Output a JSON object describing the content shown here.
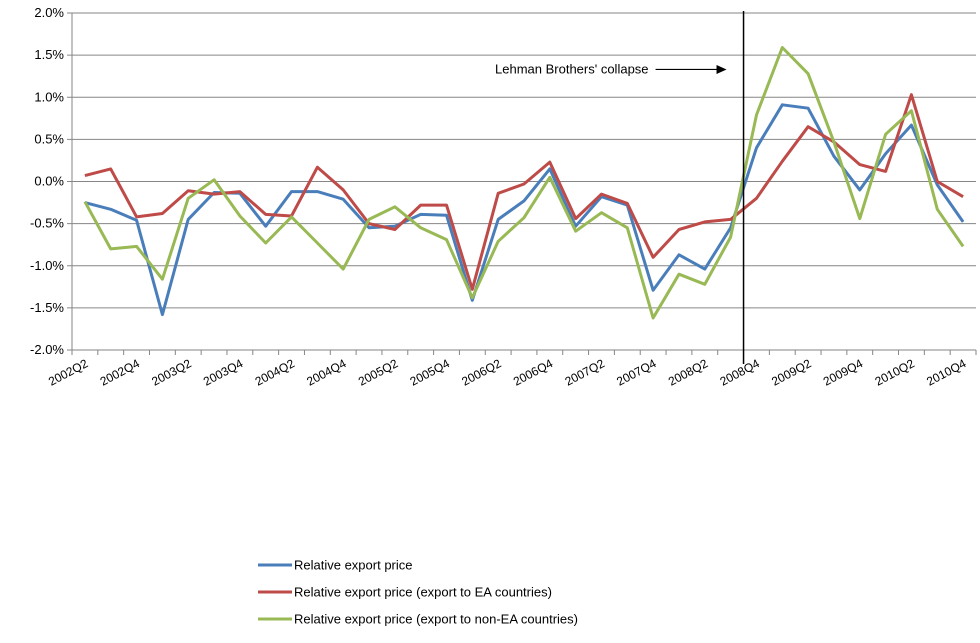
{
  "chart_data": {
    "type": "line",
    "x": [
      "2002Q2",
      "2002Q3",
      "2002Q4",
      "2003Q1",
      "2003Q2",
      "2003Q3",
      "2003Q4",
      "2004Q1",
      "2004Q2",
      "2004Q3",
      "2004Q4",
      "2005Q1",
      "2005Q2",
      "2005Q3",
      "2005Q4",
      "2006Q1",
      "2006Q2",
      "2006Q3",
      "2006Q4",
      "2007Q1",
      "2007Q2",
      "2007Q3",
      "2007Q4",
      "2008Q1",
      "2008Q2",
      "2008Q3",
      "2008Q4",
      "2009Q1",
      "2009Q2",
      "2009Q3",
      "2009Q4",
      "2010Q1",
      "2010Q2",
      "2010Q3",
      "2010Q4"
    ],
    "x_tick_labels": [
      "2002Q2",
      "2002Q4",
      "2003Q2",
      "2003Q4",
      "2004Q2",
      "2004Q4",
      "2005Q2",
      "2005Q4",
      "2006Q2",
      "2006Q4",
      "2007Q2",
      "2007Q4",
      "2008Q2",
      "2008Q4",
      "2009Q2",
      "2009Q4",
      "2010Q2",
      "2010Q4"
    ],
    "y_tick_labels": [
      "2.0%",
      "1.5%",
      "1.0%",
      "0.5%",
      "0.0%",
      "-0.5%",
      "-1.0%",
      "-1.5%",
      "-2.0%"
    ],
    "ylim": [
      -2.0,
      2.0
    ],
    "grid": true,
    "legend_position": "bottom",
    "series": [
      {
        "name": "Relative export price",
        "color": "#4A7EBB",
        "values": [
          -0.25,
          -0.33,
          -0.46,
          -1.58,
          -0.45,
          -0.13,
          -0.14,
          -0.53,
          -0.12,
          -0.12,
          -0.21,
          -0.55,
          -0.53,
          -0.39,
          -0.4,
          -1.41,
          -0.45,
          -0.23,
          0.15,
          -0.53,
          -0.18,
          -0.28,
          -1.29,
          -0.87,
          -1.04,
          -0.55,
          0.4,
          0.91,
          0.87,
          0.3,
          -0.1,
          0.33,
          0.67,
          -0.04,
          -0.48
        ]
      },
      {
        "name": "Relative export price (export to EA countries)",
        "color": "#BE4B48",
        "values": [
          0.07,
          0.15,
          -0.42,
          -0.38,
          -0.11,
          -0.15,
          -0.12,
          -0.39,
          -0.41,
          0.17,
          -0.1,
          -0.5,
          -0.57,
          -0.28,
          -0.28,
          -1.28,
          -0.14,
          -0.03,
          0.23,
          -0.44,
          -0.15,
          -0.26,
          -0.9,
          -0.57,
          -0.48,
          -0.45,
          -0.2,
          0.24,
          0.65,
          0.47,
          0.2,
          0.12,
          1.03,
          0.0,
          -0.18
        ]
      },
      {
        "name": "Relative export price (export to non-EA countries)",
        "color": "#98B954",
        "values": [
          -0.24,
          -0.8,
          -0.77,
          -1.16,
          -0.2,
          0.02,
          -0.41,
          -0.73,
          -0.42,
          -0.73,
          -1.04,
          -0.45,
          -0.3,
          -0.55,
          -0.69,
          -1.38,
          -0.71,
          -0.43,
          0.05,
          -0.59,
          -0.37,
          -0.55,
          -1.62,
          -1.1,
          -1.22,
          -0.66,
          0.79,
          1.59,
          1.28,
          0.47,
          -0.44,
          0.56,
          0.84,
          -0.33,
          -0.77
        ]
      }
    ],
    "annotation": {
      "text": "Lehman Brothers' collapse",
      "event_x": "2008Q3"
    }
  }
}
